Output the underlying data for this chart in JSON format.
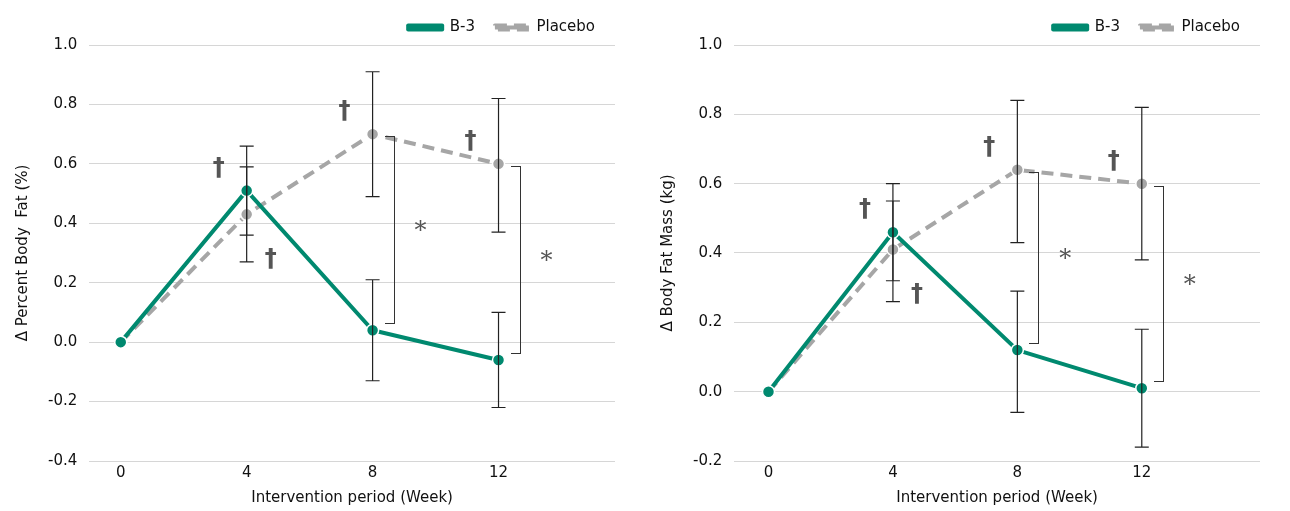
{
  "chart_data": [
    {
      "type": "line",
      "xlabel": "Intervention period (Week)",
      "ylabel": "Δ Percent Body  Fat (%)",
      "x": [
        0,
        4,
        8,
        12
      ],
      "series": [
        {
          "name": "B-3",
          "color": "#00896f",
          "line_style": "solid",
          "values": [
            0,
            0.51,
            0.04,
            -0.06
          ],
          "errors": [
            null,
            [
              0.36,
              0.66
            ],
            [
              -0.13,
              0.21
            ],
            [
              -0.22,
              0.1
            ]
          ]
        },
        {
          "name": "Placebo",
          "color": "#a6a6a6",
          "line_style": "dashed",
          "values": [
            0,
            0.43,
            0.7,
            0.6
          ],
          "errors": [
            null,
            [
              0.27,
              0.59
            ],
            [
              0.49,
              0.91
            ],
            [
              0.37,
              0.82
            ]
          ]
        }
      ],
      "xlim": [
        -1,
        15.7
      ],
      "xticks": [
        0,
        4,
        8,
        12
      ],
      "ylim": [
        -0.4,
        1.0
      ],
      "yticks": [
        {
          "value": -0.4,
          "label": "-0.4"
        },
        {
          "value": -0.2,
          "label": "-0.2"
        },
        {
          "value": 0,
          "label": "0.0"
        },
        {
          "value": 0.2,
          "label": "0.2"
        },
        {
          "value": 0.4,
          "label": "0.4"
        },
        {
          "value": 0.6,
          "label": "0.6"
        },
        {
          "value": 0.8,
          "label": "0.8"
        },
        {
          "value": 1.0,
          "label": "1.0"
        }
      ],
      "grid": "y",
      "legend": "top right",
      "marker": "circle",
      "annotations": [
        {
          "text": "†",
          "x": 4,
          "y": 0.51
        },
        {
          "text": "†",
          "x": 4,
          "y": 0.43
        },
        {
          "text": "†",
          "x": 8,
          "y": 0.7
        },
        {
          "text": "†",
          "x": 12,
          "y": 0.6
        },
        "*",
        "*"
      ]
    },
    {
      "type": "line",
      "xlabel": "Intervention period (Week)",
      "ylabel": "Δ Body Fat Mass (kg)",
      "x": [
        0,
        4,
        8,
        12
      ],
      "series": [
        {
          "name": "B-3",
          "color": "#00896f",
          "line_style": "solid",
          "values": [
            0,
            0.46,
            0.12,
            0.01
          ],
          "errors": [
            null,
            [
              0.32,
              0.6
            ],
            [
              -0.06,
              0.29
            ],
            [
              -0.16,
              0.18
            ]
          ]
        },
        {
          "name": "Placebo",
          "color": "#a6a6a6",
          "line_style": "dashed",
          "values": [
            0,
            0.41,
            0.64,
            0.6
          ],
          "errors": [
            null,
            [
              0.26,
              0.55
            ],
            [
              0.43,
              0.84
            ],
            [
              0.38,
              0.82
            ]
          ]
        }
      ],
      "xlim": [
        -1.1,
        15.8
      ],
      "xticks": [
        0,
        4,
        8,
        12
      ],
      "ylim": [
        -0.2,
        1.0
      ],
      "yticks": [
        {
          "value": -0.2,
          "label": "-0.2"
        },
        {
          "value": 0,
          "label": "0.0"
        },
        {
          "value": 0.2,
          "label": "0.2"
        },
        {
          "value": 0.4,
          "label": "0.4"
        },
        {
          "value": 0.6,
          "label": "0.6"
        },
        {
          "value": 0.8,
          "label": "0.8"
        },
        {
          "value": 1.0,
          "label": "1.0"
        }
      ],
      "grid": "y",
      "legend": "top right",
      "marker": "circle",
      "annotations": [
        {
          "text": "†",
          "x": 4,
          "y": 0.46
        },
        {
          "text": "†",
          "x": 4,
          "y": 0.41
        },
        {
          "text": "†",
          "x": 8,
          "y": 0.64
        },
        {
          "text": "†",
          "x": 12,
          "y": 0.6
        },
        "*",
        "*"
      ]
    }
  ]
}
